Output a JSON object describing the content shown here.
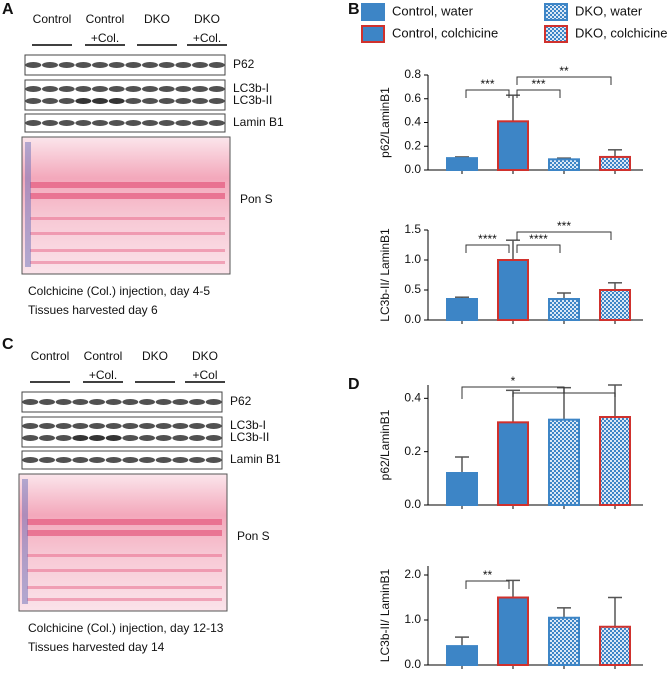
{
  "panels": [
    "A",
    "B",
    "C",
    "D"
  ],
  "blots": [
    {
      "groups": [
        [
          "Control"
        ],
        [
          "Control",
          "+Col."
        ],
        [
          "DKO"
        ],
        [
          "DKO",
          "+Col."
        ]
      ],
      "bands": [
        "P62",
        "LC3b-I",
        "LC3b-II",
        "Lamin B1",
        "Pon S"
      ],
      "caption": [
        "Colchicine (Col.) injection, day 4-5",
        "Tissues harvested day 6"
      ]
    },
    {
      "groups": [
        [
          "Control"
        ],
        [
          "Control",
          "+Col."
        ],
        [
          "DKO"
        ],
        [
          "DKO",
          "+Col"
        ]
      ],
      "bands": [
        "P62",
        "LC3b-I",
        "LC3b-II",
        "Lamin B1",
        "Pon S"
      ],
      "caption": [
        "Colchicine (Col.) injection, day 12-13",
        "Tissues harvested day 14"
      ]
    }
  ],
  "legend": [
    {
      "name": "Control, water",
      "fill": "#3d85c6",
      "edge": "#3d85c6",
      "pattern": false
    },
    {
      "name": "Control, colchicine",
      "fill": "#3d85c6",
      "edge": "#d0312d",
      "pattern": false
    },
    {
      "name": "DKO, water",
      "fill": "#3d85c6",
      "edge": "#3d85c6",
      "pattern": true
    },
    {
      "name": "DKO, colchicine",
      "fill": "#3d85c6",
      "edge": "#d0312d",
      "pattern": true
    }
  ],
  "chart_data": [
    {
      "type": "bar",
      "ylabel": "p62/LaminB1",
      "categories": [
        null,
        null,
        null,
        null
      ],
      "values": [
        0.1,
        0.41,
        0.09,
        0.11
      ],
      "errors": [
        0.01,
        0.22,
        0.01,
        0.06
      ],
      "ylim": [
        0,
        0.8
      ],
      "yticks": [
        {
          "value": 0,
          "label": "0.0"
        },
        0.2,
        0.4,
        0.6,
        0.8
      ],
      "significance": [
        {
          "from": 0,
          "to": [
            1
          ],
          "label": "***"
        },
        {
          "from": 1,
          "to": [
            2
          ],
          "label": "***"
        },
        {
          "from": 1,
          "to": [
            3
          ],
          "label": "**"
        }
      ]
    },
    {
      "type": "bar",
      "ylabel": "LC3b-II/ LaminB1",
      "categories": [
        null,
        null,
        null,
        null
      ],
      "values": [
        0.35,
        1.0,
        0.35,
        0.5
      ],
      "errors": [
        0.03,
        0.33,
        0.1,
        0.12
      ],
      "ylim": [
        0,
        1.5
      ],
      "yticks": [
        {
          "value": 0,
          "label": "0.0"
        },
        0.5,
        {
          "value": 1,
          "label": "1.0"
        },
        1.5
      ],
      "significance": [
        {
          "from": 0,
          "to": [
            1
          ],
          "label": "****"
        },
        {
          "from": 1,
          "to": [
            2
          ],
          "label": "****"
        },
        {
          "from": 1,
          "to": [
            3
          ],
          "label": "***"
        }
      ]
    },
    {
      "type": "bar",
      "ylabel": "p62/LaminB1",
      "categories": [
        null,
        null,
        null,
        null
      ],
      "values": [
        0.12,
        0.31,
        0.32,
        0.33
      ],
      "errors": [
        0.06,
        0.12,
        0.12,
        0.12
      ],
      "ylim": [
        0,
        0.45
      ],
      "yticks": [
        {
          "value": 0,
          "label": "0.0"
        },
        0.2,
        0.4
      ],
      "significance": [
        {
          "from": 0,
          "to": [
            1,
            3
          ],
          "label": "*"
        }
      ]
    },
    {
      "type": "bar",
      "ylabel": "LC3b-II/ LaminB1",
      "categories": [
        null,
        null,
        null,
        null
      ],
      "values": [
        0.42,
        1.5,
        1.05,
        0.85
      ],
      "errors": [
        0.2,
        0.38,
        0.22,
        0.65
      ],
      "ylim": [
        0,
        2.2
      ],
      "yticks": [
        {
          "value": 0,
          "label": "0.0"
        },
        {
          "value": 1,
          "label": "1.0"
        },
        {
          "value": 2,
          "label": "2.0"
        }
      ],
      "significance": [
        {
          "from": 0,
          "to": [
            1
          ],
          "label": "**"
        }
      ]
    }
  ]
}
